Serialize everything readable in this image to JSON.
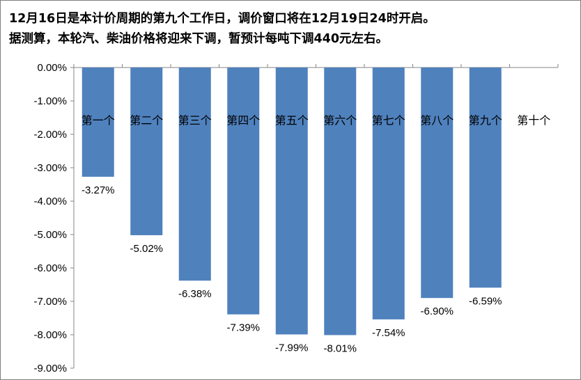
{
  "chart_data": {
    "type": "bar",
    "title_lines": [
      "12月16日是本计价周期的第九个工作日，调价窗口将在12月19日24时开启。",
      "据测算，本轮汽、柴油价格将迎来下调，暂预计每吨下调440元左右。"
    ],
    "categories": [
      "第一个",
      "第二个",
      "第三个",
      "第四个",
      "第五个",
      "第六个",
      "第七个",
      "第八个",
      "第九个",
      "第十个"
    ],
    "values": [
      -3.27,
      -5.02,
      -6.38,
      -7.39,
      -7.99,
      -8.01,
      -7.54,
      -6.9,
      -6.59,
      null
    ],
    "data_labels": [
      "-3.27%",
      "-5.02%",
      "-6.38%",
      "-7.39%",
      "-7.99%",
      "-8.01%",
      "-7.54%",
      "-6.90%",
      "-6.59%",
      ""
    ],
    "y_ticks": [
      "0.00%",
      "-1.00%",
      "-2.00%",
      "-3.00%",
      "-4.00%",
      "-5.00%",
      "-6.00%",
      "-7.00%",
      "-8.00%",
      "-9.00%"
    ],
    "ylim": [
      -9,
      0
    ],
    "xlabel": "",
    "ylabel": "",
    "bar_color": "#4f81bd",
    "grid": false,
    "legend": "none"
  }
}
